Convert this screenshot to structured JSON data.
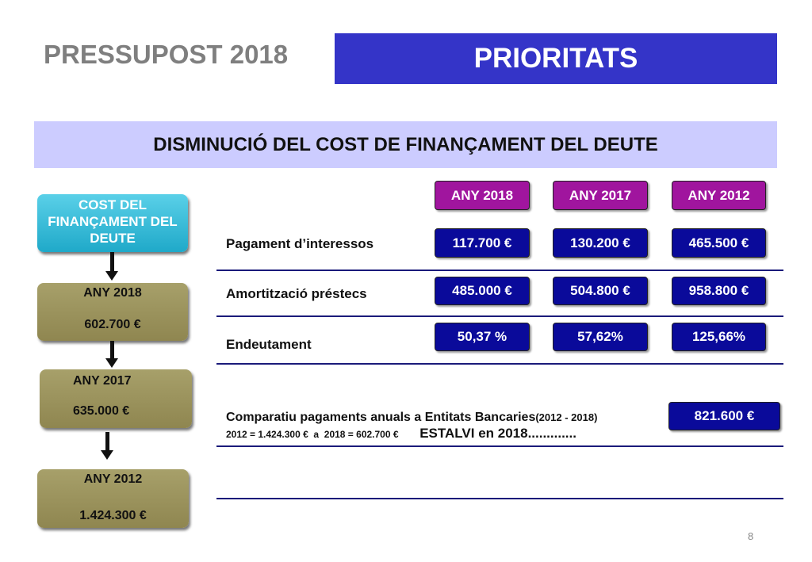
{
  "header": {
    "title": "PRESSUPOST 2018",
    "section": "PRIORITATS"
  },
  "subtitle": "DISMINUCIÓ DEL COST DE FINANÇAMENT DEL DEUTE",
  "flow": {
    "title": "COST DEL FINANÇAMENT DEL DEUTE",
    "steps": [
      {
        "year": "ANY 2018",
        "amount": "602.700 €"
      },
      {
        "year": "ANY 2017",
        "amount": "635.000 €"
      },
      {
        "year": "ANY 2012",
        "amount": "1.424.300 €"
      }
    ]
  },
  "table": {
    "columns": [
      "ANY 2018",
      "ANY 2017",
      "ANY 2012"
    ],
    "rows": [
      {
        "label": "Pagament d’interessos",
        "cells": [
          "117.700 €",
          "130.200 €",
          "465.500 €"
        ]
      },
      {
        "label": "Amortització préstecs",
        "cells": [
          "485.000 €",
          "504.800 €",
          "958.800 €"
        ]
      },
      {
        "label": "Endeutament",
        "cells": [
          "50,37 %",
          "57,62%",
          "125,66%"
        ]
      }
    ]
  },
  "comparison": {
    "label": "Comparatiu pagaments anuals a Entitats Bancaries",
    "period": "(2012 - 2018)",
    "detail": "2012 = 1.424.300 €  a  2018 = 602.700 €",
    "saving_label": "ESTALVI en 2018.............",
    "saving": "821.600 €"
  },
  "page_number": "8"
}
